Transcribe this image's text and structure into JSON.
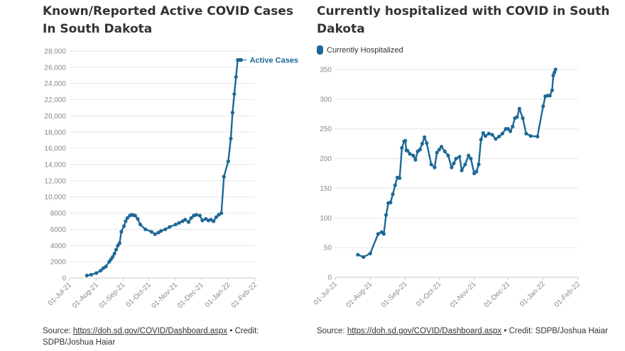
{
  "charts": [
    {
      "title": "Known/Reported Active COVID Cases In South Dakota",
      "source_prefix": "Source: ",
      "source_link": "https://doh.sd.gov/COVID/Dashboard.aspx",
      "source_suffix": " • Credit: SDPB/Joshua Haiar"
    },
    {
      "title": "Currently hospitalized with COVID in South Dakota",
      "source_prefix": "Source: ",
      "source_link": "https://doh.sd.gov/COVID/Dashboard.aspx",
      "source_suffix": " • Credit: SDPB/Joshua Haiar"
    }
  ],
  "chart_data": [
    {
      "type": "line",
      "title": "Known/Reported Active COVID Cases In South Dakota",
      "xlabel": "",
      "ylabel": "",
      "x_ticks": [
        "01-Jul-21",
        "01-Aug-21",
        "01-Sep-21",
        "01-Oct-21",
        "01-Nov-21",
        "01-Dec-21",
        "01-Jan-22",
        "01-Feb-22"
      ],
      "y_ticks": [
        "0",
        "2000",
        "4000",
        "6000",
        "8000",
        "10,000",
        "12,000",
        "14,000",
        "16,000",
        "18,000",
        "20,000",
        "22,000",
        "24,000",
        "26,000",
        "28,000"
      ],
      "xlim": [
        "2021-07-01",
        "2022-02-01"
      ],
      "ylim": [
        0,
        28000
      ],
      "grid": true,
      "series_label": "Active Cases",
      "color": "#1d6996",
      "series": [
        {
          "name": "Active Cases",
          "x": [
            "2021-07-21",
            "2021-07-26",
            "2021-08-01",
            "2021-08-06",
            "2021-08-09",
            "2021-08-12",
            "2021-08-16",
            "2021-08-18",
            "2021-08-20",
            "2021-08-22",
            "2021-08-24",
            "2021-08-26",
            "2021-08-28",
            "2021-08-30",
            "2021-09-02",
            "2021-09-04",
            "2021-09-06",
            "2021-09-09",
            "2021-09-11",
            "2021-09-13",
            "2021-09-15",
            "2021-09-18",
            "2021-09-21",
            "2021-09-27",
            "2021-10-04",
            "2021-10-08",
            "2021-10-12",
            "2021-10-15",
            "2021-10-20",
            "2021-10-25",
            "2021-11-01",
            "2021-11-05",
            "2021-11-09",
            "2021-11-12",
            "2021-11-16",
            "2021-11-19",
            "2021-11-22",
            "2021-11-25",
            "2021-11-29",
            "2021-12-02",
            "2021-12-06",
            "2021-12-09",
            "2021-12-12",
            "2021-12-15",
            "2021-12-18",
            "2021-12-21",
            "2021-12-24",
            "2021-12-27",
            "2022-01-01",
            "2022-01-04",
            "2022-01-06",
            "2022-01-08",
            "2022-01-10",
            "2022-01-12",
            "2022-01-14",
            "2022-01-15",
            "2022-01-16"
          ],
          "y": [
            300,
            400,
            600,
            900,
            1200,
            1400,
            2000,
            2300,
            2600,
            3000,
            3500,
            4000,
            4300,
            5700,
            6400,
            7000,
            7400,
            7700,
            7800,
            7750,
            7700,
            7300,
            6600,
            6000,
            5700,
            5400,
            5600,
            5800,
            6000,
            6300,
            6600,
            6800,
            7000,
            7200,
            6900,
            7400,
            7700,
            7800,
            7700,
            7100,
            7300,
            7100,
            7200,
            7000,
            7500,
            7800,
            8000,
            12500,
            14400,
            17200,
            20400,
            22700,
            24800,
            26900,
            26900,
            26900,
            26900
          ]
        }
      ]
    },
    {
      "type": "line",
      "title": "Currently hospitalized with COVID in South Dakota",
      "xlabel": "",
      "ylabel": "",
      "x_ticks": [
        "01-Jul-21",
        "01-Aug-21",
        "01-Sep-21",
        "01-Oct-21",
        "01-Nov-21",
        "01-Dec-21",
        "01-Jan-22",
        "01-Feb-22"
      ],
      "y_ticks": [
        "0",
        "50",
        "100",
        "150",
        "200",
        "250",
        "300",
        "350"
      ],
      "xlim": [
        "2021-07-01",
        "2022-02-01"
      ],
      "ylim": [
        0,
        350
      ],
      "grid": true,
      "legend": [
        "Currently Hospitalized"
      ],
      "legend_position": "top-left",
      "color": "#1d6996",
      "series": [
        {
          "name": "Currently Hospitalized",
          "x": [
            "2021-07-21",
            "2021-07-26",
            "2021-08-01",
            "2021-08-08",
            "2021-08-11",
            "2021-08-13",
            "2021-08-15",
            "2021-08-17",
            "2021-08-19",
            "2021-08-21",
            "2021-08-23",
            "2021-08-25",
            "2021-08-27",
            "2021-08-29",
            "2021-08-31",
            "2021-09-01",
            "2021-09-02",
            "2021-09-03",
            "2021-09-05",
            "2021-09-08",
            "2021-09-10",
            "2021-09-12",
            "2021-09-14",
            "2021-09-16",
            "2021-09-18",
            "2021-09-20",
            "2021-09-24",
            "2021-09-27",
            "2021-09-29",
            "2021-10-01",
            "2021-10-03",
            "2021-10-06",
            "2021-10-09",
            "2021-10-12",
            "2021-10-14",
            "2021-10-16",
            "2021-10-19",
            "2021-10-21",
            "2021-10-24",
            "2021-10-27",
            "2021-10-29",
            "2021-11-01",
            "2021-11-03",
            "2021-11-05",
            "2021-11-07",
            "2021-11-09",
            "2021-11-11",
            "2021-11-14",
            "2021-11-17",
            "2021-11-20",
            "2021-11-23",
            "2021-11-26",
            "2021-11-29",
            "2021-12-01",
            "2021-12-03",
            "2021-12-05",
            "2021-12-07",
            "2021-12-09",
            "2021-12-11",
            "2021-12-14",
            "2021-12-17",
            "2021-12-21",
            "2021-12-27",
            "2022-01-01",
            "2022-01-03",
            "2022-01-05",
            "2022-01-07",
            "2022-01-09",
            "2022-01-10",
            "2022-01-11",
            "2022-01-12"
          ],
          "y": [
            38,
            34,
            40,
            73,
            76,
            73,
            105,
            125,
            126,
            140,
            155,
            168,
            167,
            218,
            229,
            230,
            214,
            213,
            208,
            205,
            198,
            212,
            215,
            225,
            236,
            226,
            190,
            185,
            210,
            215,
            220,
            212,
            205,
            185,
            192,
            200,
            203,
            180,
            190,
            205,
            200,
            175,
            178,
            190,
            232,
            243,
            238,
            242,
            240,
            233,
            237,
            242,
            250,
            250,
            246,
            254,
            268,
            270,
            284,
            268,
            242,
            238,
            237,
            288,
            305,
            306,
            306,
            315,
            340,
            345,
            350
          ]
        }
      ]
    }
  ]
}
